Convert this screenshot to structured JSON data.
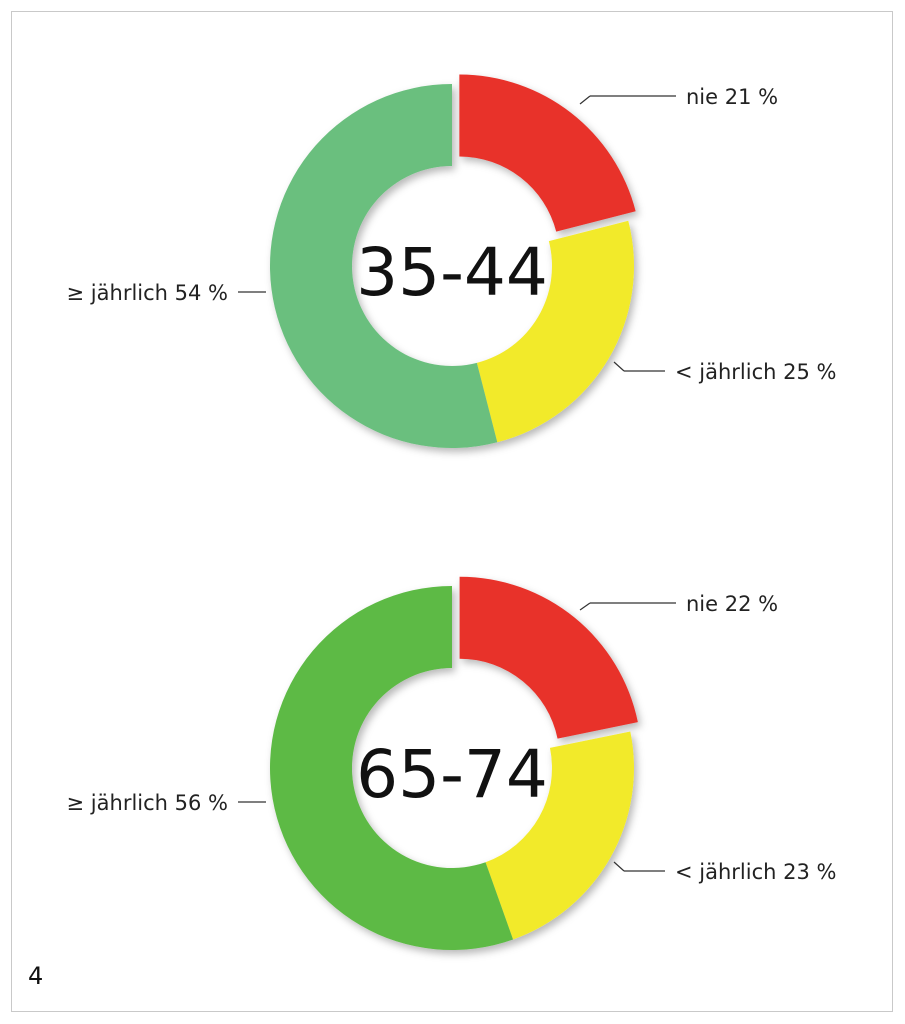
{
  "figure_number": "4",
  "chart_data": [
    {
      "type": "pie",
      "center_label": "35-44",
      "slices": [
        {
          "label": "nie 21 %",
          "value": 21,
          "color": "#e8302a",
          "exploded": true
        },
        {
          "label": "< jährlich 25 %",
          "value": 25,
          "color": "#f2ea2c",
          "exploded": false
        },
        {
          "label": "≥ jährlich 54 %",
          "value": 54,
          "color": "#6abf7e",
          "exploded": false
        }
      ]
    },
    {
      "type": "pie",
      "center_label": "65-74",
      "slices": [
        {
          "label": "nie 22 %",
          "value": 22,
          "color": "#e8302a",
          "exploded": true
        },
        {
          "label": "< jährlich 23 %",
          "value": 23,
          "color": "#f2ea2c",
          "exploded": false
        },
        {
          "label": "≥ jährlich 56 %",
          "value": 56,
          "color": "#5dba45",
          "exploded": false
        }
      ]
    }
  ]
}
